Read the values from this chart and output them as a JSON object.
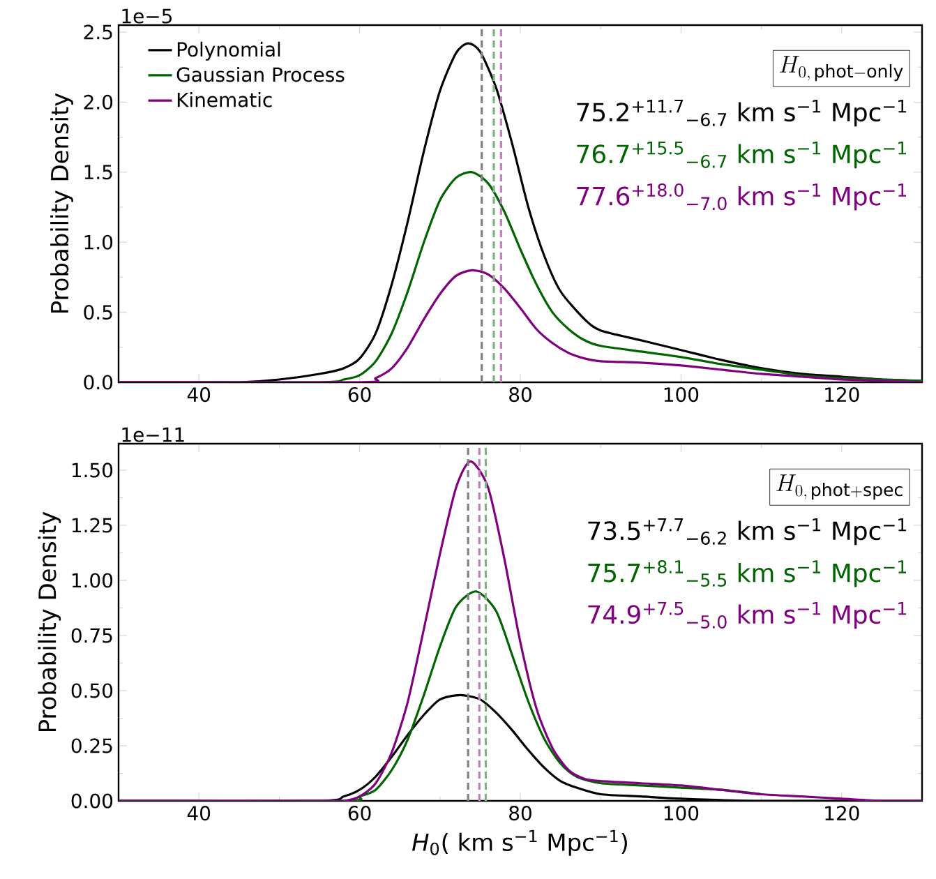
{
  "chart_data": [
    {
      "type": "line",
      "ylabel": "Probability Density",
      "xlim": [
        30,
        130
      ],
      "ylim": [
        0,
        2.55
      ],
      "xticks": [
        40,
        60,
        80,
        100,
        120
      ],
      "yticks": [
        {
          "value": 0,
          "label": "0.0"
        },
        {
          "value": 0.5,
          "label": "0.5"
        },
        {
          "value": 1.0,
          "label": "1.0"
        },
        {
          "value": 1.5,
          "label": "1.5"
        },
        {
          "value": 2.0,
          "label": "2.0"
        },
        {
          "value": 2.5,
          "label": "2.5"
        }
      ],
      "legend": "top left",
      "line_style": "solid",
      "marker": "none",
      "annotations": [
        "1e−5",
        "H_{0,\\,\\mathrm{phot-only}}",
        "75.2$^{+11.7}$$_{−6.7}$ km s$^{−1}$ Mpc$^{−1}$",
        "76.7$^{+15.5}$$_{−6.7}$ km s$^{−1}$ Mpc$^{−1}$",
        "77.6$^{+18.0}$$_{−7.0}$ km s$^{−1}$ Mpc$^{−1}$"
      ],
      "ref_lines": [
        {
          "axis": "x",
          "value": 75.2,
          "color": "#808080",
          "line_style": "dashed"
        },
        {
          "axis": "x",
          "value": 76.7,
          "color": "#80b180",
          "line_style": "dashed"
        },
        {
          "axis": "x",
          "value": 77.6,
          "color": "#c080c0",
          "line_style": "dashed"
        }
      ],
      "series": [
        {
          "name": "Polynomial",
          "color": "#000000",
          "x": [
            30,
            45,
            50,
            55,
            58,
            60,
            62,
            64,
            66,
            68,
            70,
            72,
            73.5,
            75,
            77,
            79,
            81,
            83,
            85,
            88,
            90,
            95,
            100,
            105,
            110,
            115,
            120,
            125,
            130
          ],
          "values": [
            0,
            0,
            0.02,
            0.06,
            0.1,
            0.17,
            0.35,
            0.7,
            1.15,
            1.65,
            2.08,
            2.35,
            2.42,
            2.36,
            2.1,
            1.7,
            1.25,
            0.9,
            0.65,
            0.45,
            0.37,
            0.3,
            0.23,
            0.16,
            0.1,
            0.06,
            0.04,
            0.02,
            0.01
          ]
        },
        {
          "name": "Gaussian Process",
          "color": "#006400",
          "x": [
            30,
            55,
            58,
            60,
            62,
            64,
            66,
            68,
            70,
            72,
            74,
            76,
            78,
            80,
            82,
            84,
            86,
            88,
            90,
            95,
            100,
            105,
            110,
            115,
            120,
            125,
            130
          ],
          "values": [
            0,
            0,
            0.02,
            0.05,
            0.15,
            0.35,
            0.65,
            1.0,
            1.3,
            1.46,
            1.5,
            1.42,
            1.22,
            0.95,
            0.7,
            0.5,
            0.38,
            0.3,
            0.26,
            0.22,
            0.18,
            0.13,
            0.09,
            0.05,
            0.03,
            0.02,
            0.01
          ]
        },
        {
          "name": "Kinematic",
          "color": "#800080",
          "x": [
            30,
            60,
            62,
            64,
            66,
            68,
            70,
            72,
            74,
            76,
            78,
            80,
            82,
            84,
            86,
            88,
            90,
            95,
            100,
            105,
            110,
            115,
            120,
            125,
            130
          ],
          "values": [
            0,
            0,
            0.03,
            0.1,
            0.25,
            0.45,
            0.63,
            0.76,
            0.8,
            0.77,
            0.67,
            0.53,
            0.38,
            0.28,
            0.21,
            0.17,
            0.15,
            0.14,
            0.12,
            0.09,
            0.06,
            0.04,
            0.02,
            0.01,
            0
          ]
        }
      ]
    },
    {
      "type": "line",
      "ylabel": "Probability Density",
      "xlabel": "*H*$_{0}$( km s$^{−1}$ Mpc$^{−1}$)",
      "xlim": [
        30,
        130
      ],
      "ylim": [
        0,
        1.62
      ],
      "xticks": [
        40,
        60,
        80,
        100,
        120
      ],
      "yticks": [
        {
          "value": 0,
          "label": "0.00"
        },
        {
          "value": 0.25,
          "label": "0.25"
        },
        {
          "value": 0.5,
          "label": "0.50"
        },
        {
          "value": 0.75,
          "label": "0.75"
        },
        {
          "value": 1.0,
          "label": "1.00"
        },
        {
          "value": 1.25,
          "label": "1.25"
        },
        {
          "value": 1.5,
          "label": "1.50"
        }
      ],
      "line_style": "solid",
      "marker": "none",
      "annotations": [
        "1e−11",
        "H_{0,\\,\\mathrm{phot+spec}}",
        "73.5$^{+7.7}$$_{−6.2}$ km s$^{−1}$ Mpc$^{−1}$",
        "75.7$^{+8.1}$$_{−5.5}$ km s$^{−1}$ Mpc$^{−1}$",
        "74.9$^{+7.5}$$_{−5.0}$ km s$^{−1}$ Mpc$^{−1}$"
      ],
      "ref_lines": [
        {
          "axis": "x",
          "value": 73.5,
          "color": "#808080",
          "line_style": "dashed"
        },
        {
          "axis": "x",
          "value": 75.7,
          "color": "#80b180",
          "line_style": "dashed"
        },
        {
          "axis": "x",
          "value": 74.9,
          "color": "#c080c0",
          "line_style": "dashed"
        }
      ],
      "series": [
        {
          "color": "#000000",
          "x": [
            30,
            55,
            58,
            60,
            62,
            64,
            66,
            68,
            70,
            72.5,
            75,
            77,
            79,
            81,
            83,
            85,
            87,
            90,
            95,
            100,
            110,
            130
          ],
          "values": [
            0,
            0,
            0.02,
            0.05,
            0.11,
            0.2,
            0.3,
            0.39,
            0.46,
            0.48,
            0.46,
            0.4,
            0.32,
            0.23,
            0.15,
            0.09,
            0.06,
            0.03,
            0.02,
            0.01,
            0,
            0
          ]
        },
        {
          "color": "#006400",
          "x": [
            30,
            58,
            60,
            62,
            64,
            66,
            68,
            70,
            72,
            74.5,
            77,
            79,
            81,
            83,
            85,
            87,
            90,
            95,
            100,
            105,
            110
          ],
          "values": [
            0,
            0,
            0.02,
            0.05,
            0.14,
            0.28,
            0.48,
            0.7,
            0.88,
            0.95,
            0.86,
            0.66,
            0.45,
            0.28,
            0.17,
            0.11,
            0.08,
            0.07,
            0.06,
            0.05,
            0.03
          ]
        },
        {
          "color": "#800080",
          "x": [
            30,
            55,
            58,
            60,
            62,
            64,
            66,
            68,
            70,
            72,
            73.8,
            76,
            78,
            80,
            82,
            84,
            86,
            88,
            90,
            95,
            100,
            105,
            110,
            115,
            120,
            125,
            130
          ],
          "values": [
            0,
            0,
            0,
            0.02,
            0.08,
            0.22,
            0.45,
            0.78,
            1.12,
            1.42,
            1.54,
            1.42,
            1.1,
            0.72,
            0.42,
            0.24,
            0.14,
            0.1,
            0.09,
            0.08,
            0.07,
            0.05,
            0.03,
            0.02,
            0.01,
            0,
            0
          ]
        }
      ]
    }
  ]
}
